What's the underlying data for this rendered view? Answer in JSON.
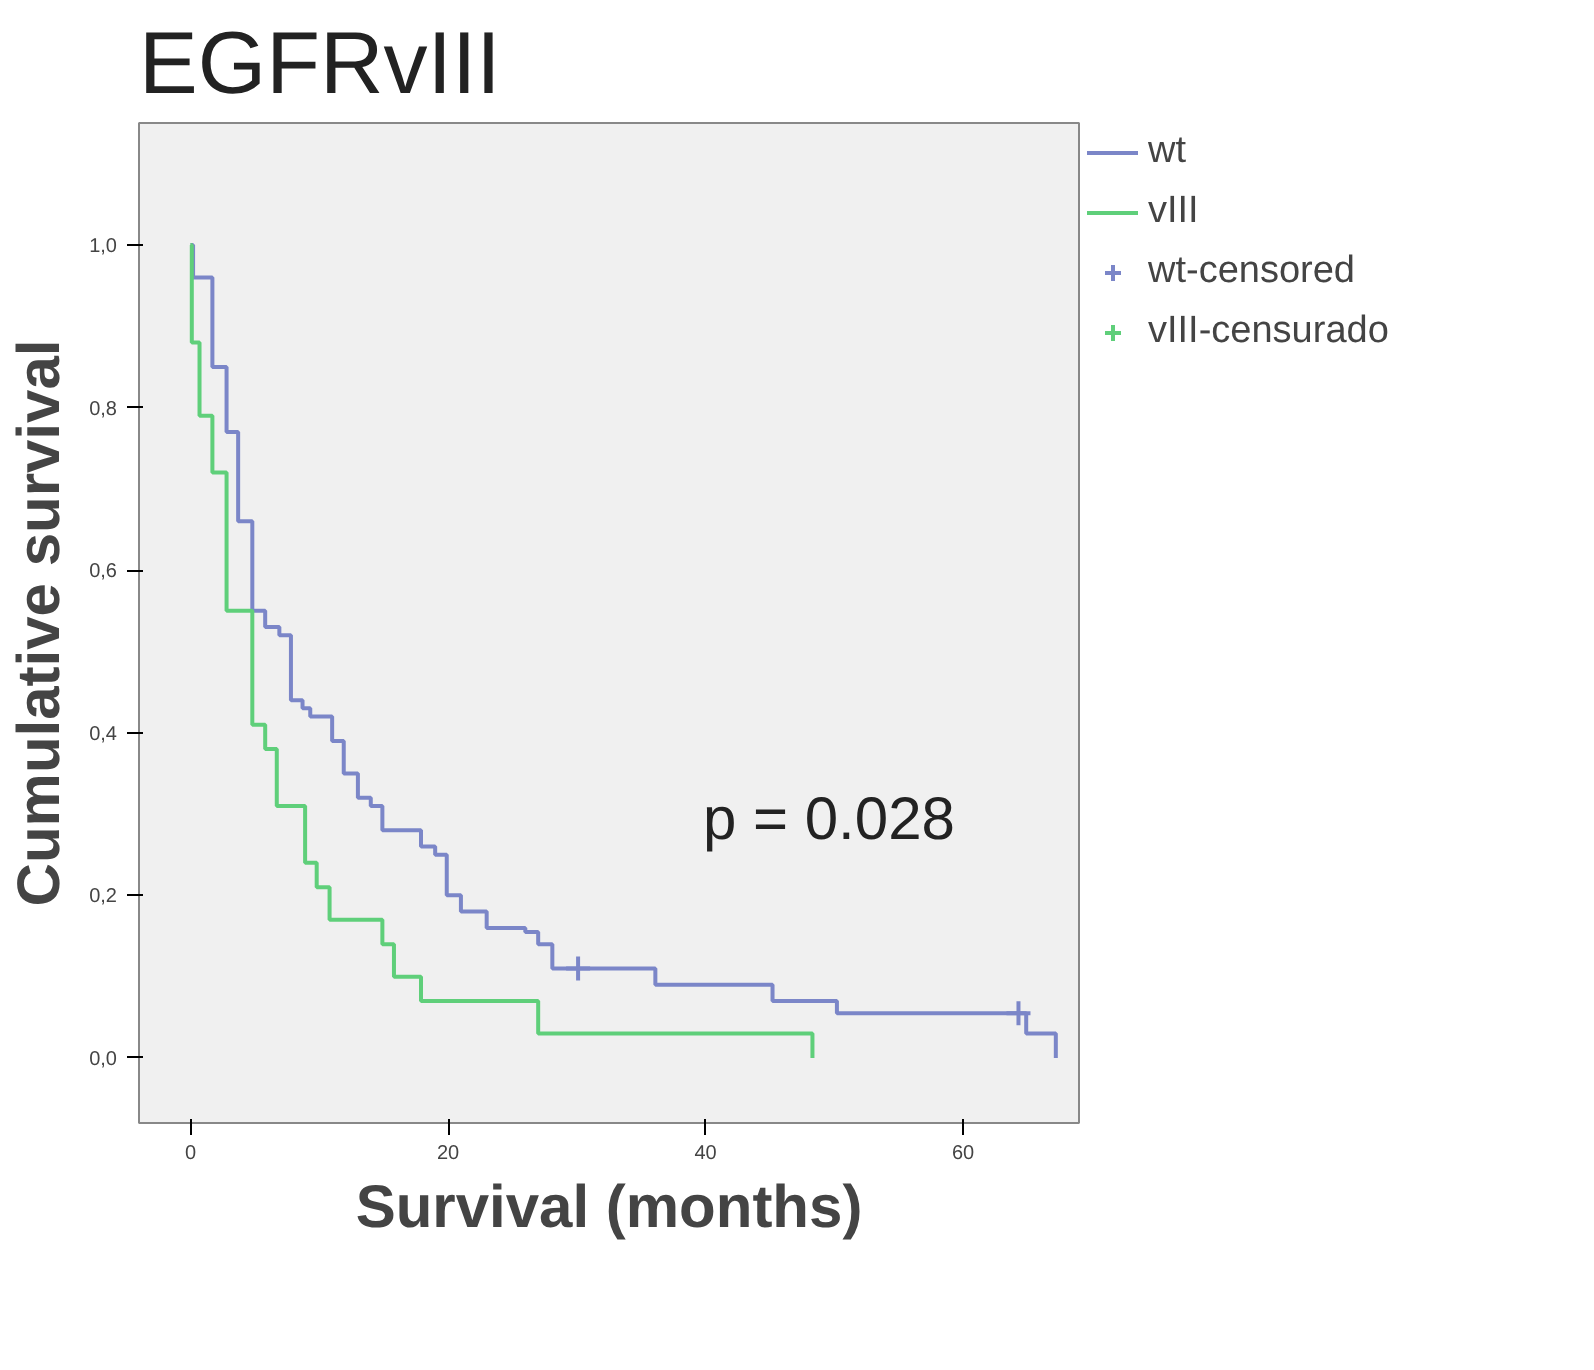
{
  "chart_data": {
    "type": "step",
    "title": "EGFRvIII",
    "xlabel": "Survival (months)",
    "ylabel": "Cumulative survival",
    "xlim": [
      -4,
      69
    ],
    "ylim": [
      -0.08,
      1.15
    ],
    "xticks": [
      0,
      20,
      40,
      60
    ],
    "yticks": [
      {
        "value": 0,
        "label": "0,0"
      },
      {
        "value": 0.2,
        "label": "0,2"
      },
      {
        "value": 0.4,
        "label": "0,4"
      },
      {
        "value": 0.6,
        "label": "0,6"
      },
      {
        "value": 0.8,
        "label": "0,8"
      },
      {
        "value": 1.0,
        "label": "1,0"
      }
    ],
    "grid": false,
    "legend": "right",
    "annotations": [
      "p = 0.028"
    ],
    "series": [
      {
        "name": "wt",
        "color": "#7b86c8",
        "x": [
          0,
          0.2,
          1.7,
          2.8,
          3.7,
          4.8,
          5.8,
          6.9,
          7.8,
          8.7,
          9.3,
          11.0,
          11.9,
          13.0,
          14.0,
          14.9,
          17.9,
          19.0,
          19.9,
          21.0,
          23.0,
          26.0,
          27.0,
          28.1,
          36.1,
          45.2,
          50.2,
          64.9,
          67.2
        ],
        "values": [
          1.0,
          0.96,
          0.85,
          0.77,
          0.66,
          0.55,
          0.53,
          0.52,
          0.44,
          0.43,
          0.42,
          0.39,
          0.35,
          0.32,
          0.31,
          0.28,
          0.26,
          0.25,
          0.2,
          0.18,
          0.16,
          0.155,
          0.14,
          0.11,
          0.09,
          0.07,
          0.055,
          0.03,
          0.0
        ]
      },
      {
        "name": "vIII",
        "color": "#5fcf7a",
        "x": [
          0,
          0.1,
          0.7,
          1.7,
          2.8,
          4.8,
          5.8,
          6.7,
          8.9,
          9.8,
          10.8,
          14.9,
          15.8,
          17.9,
          27.0,
          48.3
        ],
        "values": [
          1.0,
          0.88,
          0.79,
          0.72,
          0.55,
          0.41,
          0.38,
          0.31,
          0.24,
          0.21,
          0.17,
          0.14,
          0.1,
          0.07,
          0.03,
          0.0
        ]
      },
      {
        "name": "wt-censored",
        "color": "#7b86c8",
        "type": "scatter",
        "marker": "cross",
        "x": [
          30.1,
          64.3
        ],
        "values": [
          0.11,
          0.055
        ]
      },
      {
        "name": "vIII-censurado",
        "color": "#5fcf7a",
        "type": "scatter",
        "marker": "cross"
      }
    ]
  }
}
